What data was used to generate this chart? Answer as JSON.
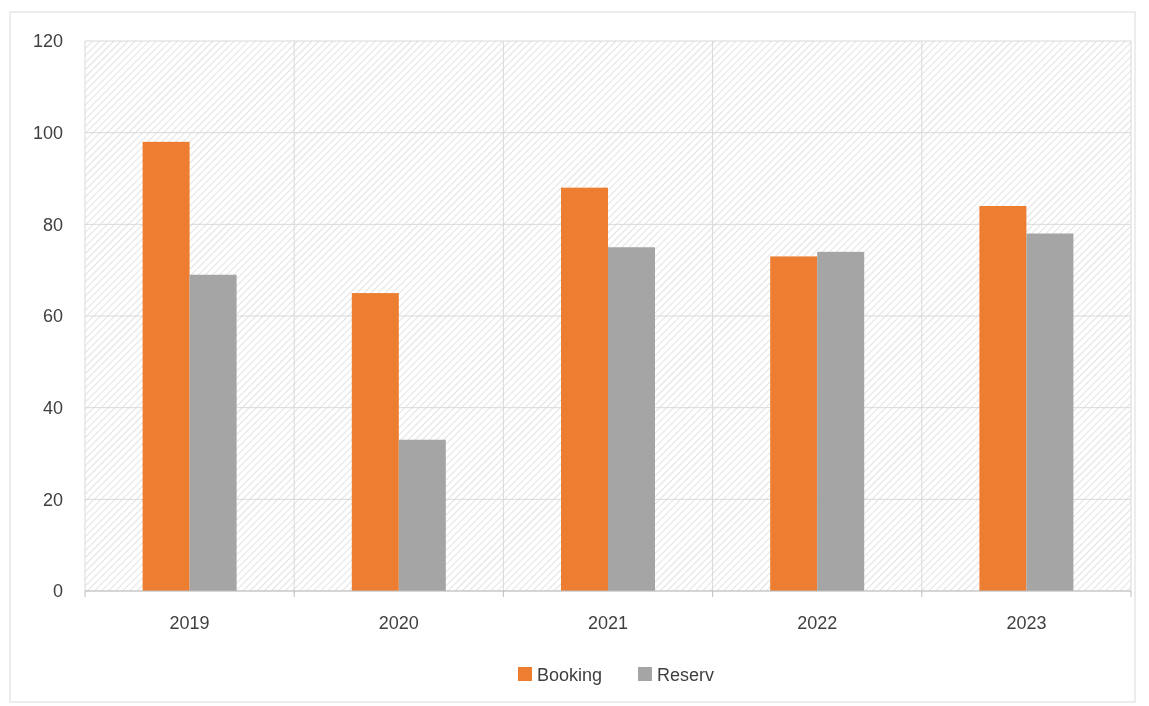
{
  "chart_data": {
    "type": "bar",
    "categories": [
      "2019",
      "2020",
      "2021",
      "2022",
      "2023"
    ],
    "series": [
      {
        "name": "Booking",
        "color": "#ed7d31",
        "values": [
          98,
          65,
          88,
          73,
          84
        ]
      },
      {
        "name": "Reserv",
        "color": "#a5a5a5",
        "values": [
          69,
          33,
          75,
          74,
          78
        ]
      }
    ],
    "ylim": [
      0,
      120
    ],
    "yticks": [
      0,
      20,
      40,
      60,
      80,
      100,
      120
    ],
    "grid": true,
    "legend": "bottom"
  }
}
